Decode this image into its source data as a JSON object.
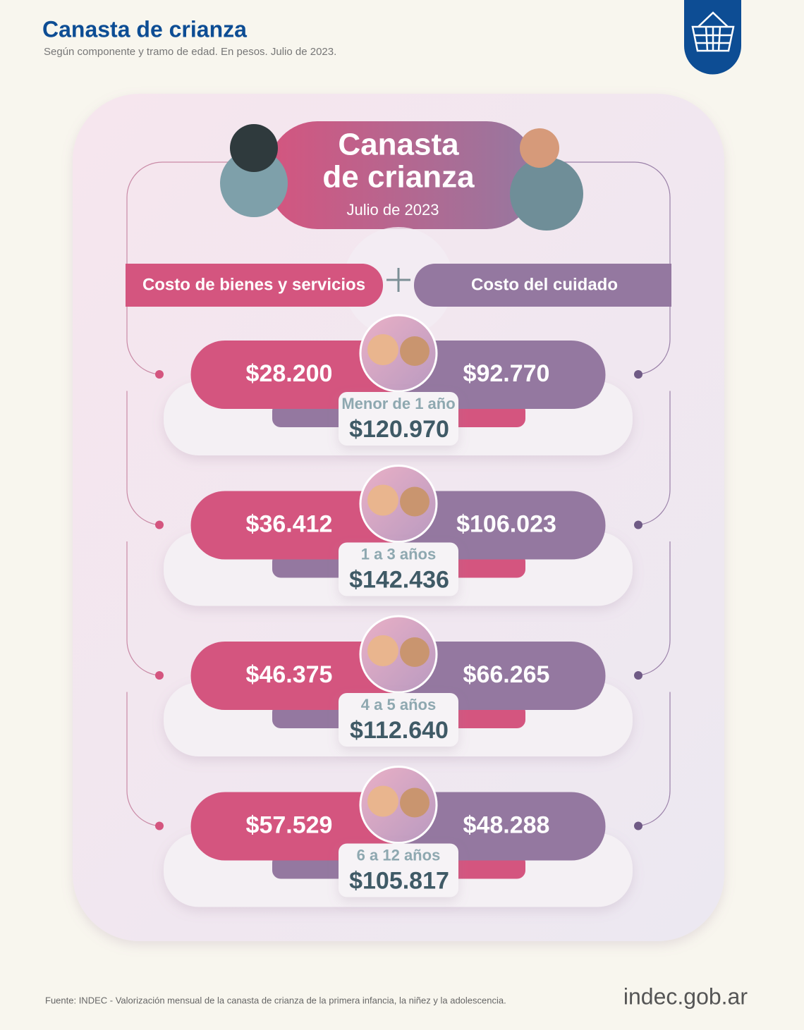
{
  "header": {
    "title": "Canasta de crianza",
    "subtitle": "Según componente y tramo de edad. En pesos. Julio de 2023."
  },
  "card": {
    "title_lines": [
      "Canasta",
      "de crianza"
    ],
    "date": "Julio de 2023",
    "left_label": "Costo de bienes y servicios",
    "right_label": "Costo del cuidado",
    "rows": [
      {
        "age": "Menor de 1 año",
        "goods": "$28.200",
        "care": "$92.770",
        "total": "$120.970"
      },
      {
        "age": "1 a 3 años",
        "goods": "$36.412",
        "care": "$106.023",
        "total": "$142.436"
      },
      {
        "age": "4 a 5 años",
        "goods": "$46.375",
        "care": "$66.265",
        "total": "$112.640"
      },
      {
        "age": "6 a 12 años",
        "goods": "$57.529",
        "care": "$48.288",
        "total": "$105.817"
      }
    ]
  },
  "footer": {
    "source": "Fuente: INDEC - Valorización mensual de la canasta de crianza de la primera infancia, la niñez y la adolescencia.",
    "logo": "indec.gob.ar"
  }
}
